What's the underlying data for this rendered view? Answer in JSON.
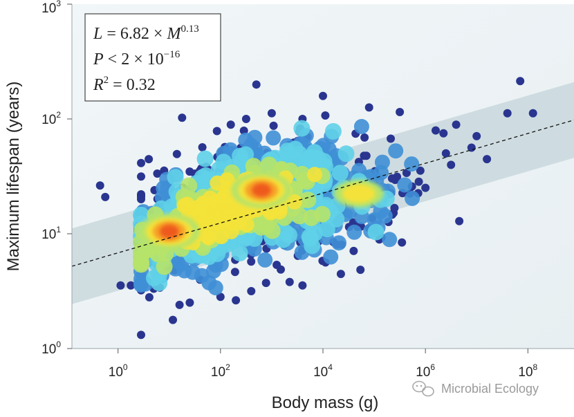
{
  "chart_data": {
    "type": "scatter",
    "x_scale": "log10",
    "y_scale": "log10",
    "xlim_log10": [
      -0.9,
      8.9
    ],
    "ylim_log10": [
      0,
      3
    ],
    "xlabel": "Body mass (g)",
    "ylabel": "Maximum lifespan (years)",
    "x_ticks": [
      {
        "base": "10",
        "exp": "0",
        "value_log10": 0
      },
      {
        "base": "10",
        "exp": "2",
        "value_log10": 2
      },
      {
        "base": "10",
        "exp": "4",
        "value_log10": 4
      },
      {
        "base": "10",
        "exp": "6",
        "value_log10": 6
      },
      {
        "base": "10",
        "exp": "8",
        "value_log10": 8
      }
    ],
    "y_ticks": [
      {
        "base": "10",
        "exp": "0",
        "value_log10": 0
      },
      {
        "base": "10",
        "exp": "1",
        "value_log10": 1
      },
      {
        "base": "10",
        "exp": "2",
        "value_log10": 2
      },
      {
        "base": "10",
        "exp": "3",
        "value_log10": 3
      }
    ],
    "fit": {
      "intercept": 6.82,
      "slope": 0.13,
      "band_log10_offset": 0.33,
      "line_style": "dashed"
    },
    "annotation": {
      "line1": {
        "var": "L",
        "eq": " = 6.82 × ",
        "var2": "M",
        "sup": "0.13"
      },
      "line2": {
        "var": "P",
        "eq": " < 2 × 10",
        "sup": "−16"
      },
      "line3": {
        "var": "R",
        "sup": "2",
        "eq": " = 0.32"
      }
    },
    "density_colormap": [
      "#2a3590",
      "#3f8fd6",
      "#5fd0e8",
      "#b6e36a",
      "#f4e23a",
      "#f7a027",
      "#ee5a1f"
    ],
    "density_hotspots": [
      {
        "label": "high-density cluster A",
        "x_log10": 1.0,
        "y_log10": 1.02,
        "level": 6
      },
      {
        "label": "high-density cluster B",
        "x_log10": 2.8,
        "y_log10": 1.38,
        "level": 6
      },
      {
        "label": "medium cluster",
        "x_log10": 4.7,
        "y_log10": 1.35,
        "level": 4
      }
    ],
    "outliers": [
      [
        -0.35,
        1.42
      ],
      [
        -0.25,
        1.32
      ],
      [
        1.25,
        2.01
      ],
      [
        2.7,
        2.3
      ],
      [
        3.6,
        2.0
      ],
      [
        4.0,
        2.2
      ],
      [
        7.85,
        2.33
      ],
      [
        8.1,
        2.05
      ],
      [
        7.6,
        2.05
      ],
      [
        6.6,
        1.95
      ],
      [
        5.5,
        2.06
      ],
      [
        4.9,
        2.1
      ],
      [
        0.05,
        0.55
      ],
      [
        0.25,
        0.55
      ],
      [
        1.2,
        0.38
      ],
      [
        1.4,
        0.4
      ],
      [
        2.0,
        0.45
      ],
      [
        2.3,
        0.42
      ],
      [
        3.6,
        0.55
      ],
      [
        3.35,
        0.58
      ],
      [
        4.35,
        0.65
      ],
      [
        5.1,
        0.95
      ],
      [
        4.05,
        0.75
      ],
      [
        0.6,
        0.8
      ],
      [
        0.85,
        0.7
      ],
      [
        6.2,
        1.9
      ],
      [
        6.9,
        1.75
      ],
      [
        7.2,
        1.65
      ],
      [
        7.0,
        1.85
      ],
      [
        6.5,
        1.6
      ],
      [
        3.0,
        2.05
      ],
      [
        2.5,
        2.0
      ],
      [
        2.2,
        1.95
      ],
      [
        5.9,
        1.55
      ],
      [
        6.4,
        1.7
      ],
      [
        0.6,
        1.65
      ],
      [
        0.9,
        1.55
      ],
      [
        1.6,
        1.55
      ],
      [
        5.7,
        1.35
      ],
      [
        6.0,
        1.4
      ],
      [
        4.6,
        0.85
      ],
      [
        4.9,
        1.05
      ],
      [
        1.1,
        0.68
      ],
      [
        1.6,
        0.6
      ],
      [
        2.6,
        0.5
      ]
    ]
  },
  "watermark": {
    "icon": "wechat-icon",
    "text": "Microbial Ecology"
  }
}
